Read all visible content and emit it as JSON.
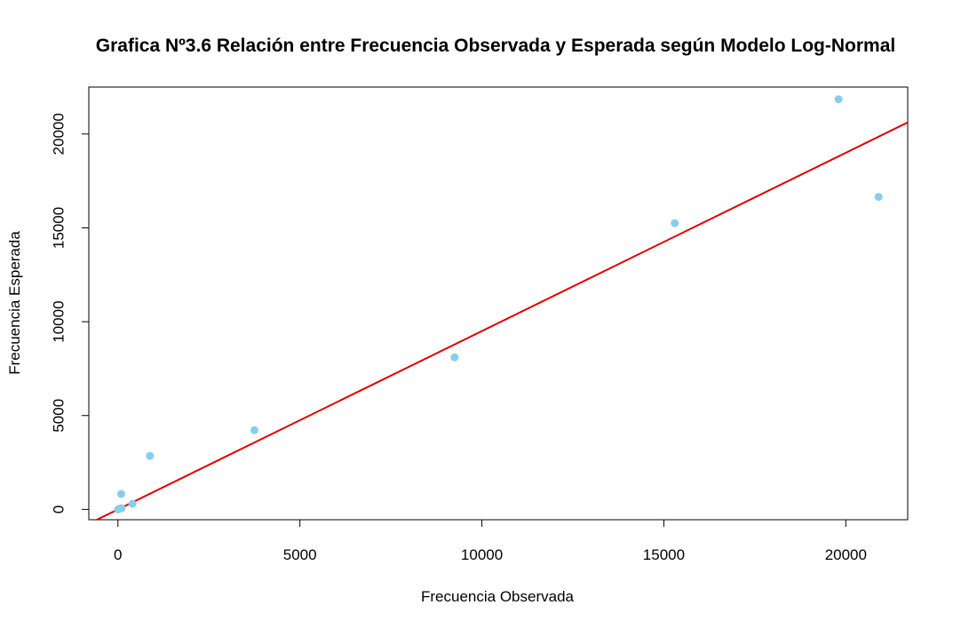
{
  "chart_data": {
    "type": "scatter",
    "title": "Grafica Nº3.6 Relación entre Frecuencia Observada y Esperada según Modelo Log-Normal",
    "xlabel": "Frecuencia Observada",
    "ylabel": "Frecuencia Esperada",
    "xlim": [
      -800,
      21700
    ],
    "ylim": [
      -550,
      22500
    ],
    "x_ticks": [
      0,
      5000,
      10000,
      15000,
      20000
    ],
    "y_ticks": [
      0,
      5000,
      10000,
      15000,
      20000
    ],
    "x_tick_labels": [
      "0",
      "5000",
      "10000",
      "15000",
      "20000"
    ],
    "y_tick_labels": [
      "0",
      "5000",
      "10000",
      "15000",
      "20000"
    ],
    "points": [
      {
        "x": 5,
        "y": 0
      },
      {
        "x": 15,
        "y": 10
      },
      {
        "x": 30,
        "y": 25
      },
      {
        "x": 60,
        "y": 50
      },
      {
        "x": 100,
        "y": 60
      },
      {
        "x": 90,
        "y": 820
      },
      {
        "x": 400,
        "y": 300
      },
      {
        "x": 880,
        "y": 2850
      },
      {
        "x": 3750,
        "y": 4220
      },
      {
        "x": 9250,
        "y": 8100
      },
      {
        "x": 15300,
        "y": 15250
      },
      {
        "x": 19800,
        "y": 21850
      },
      {
        "x": 20900,
        "y": 16650
      }
    ],
    "fit_line": {
      "intercept": 0,
      "slope": 0.95
    },
    "point_color": "#87CEEB",
    "line_color": "#E00000",
    "grid": false,
    "legend": "none"
  }
}
